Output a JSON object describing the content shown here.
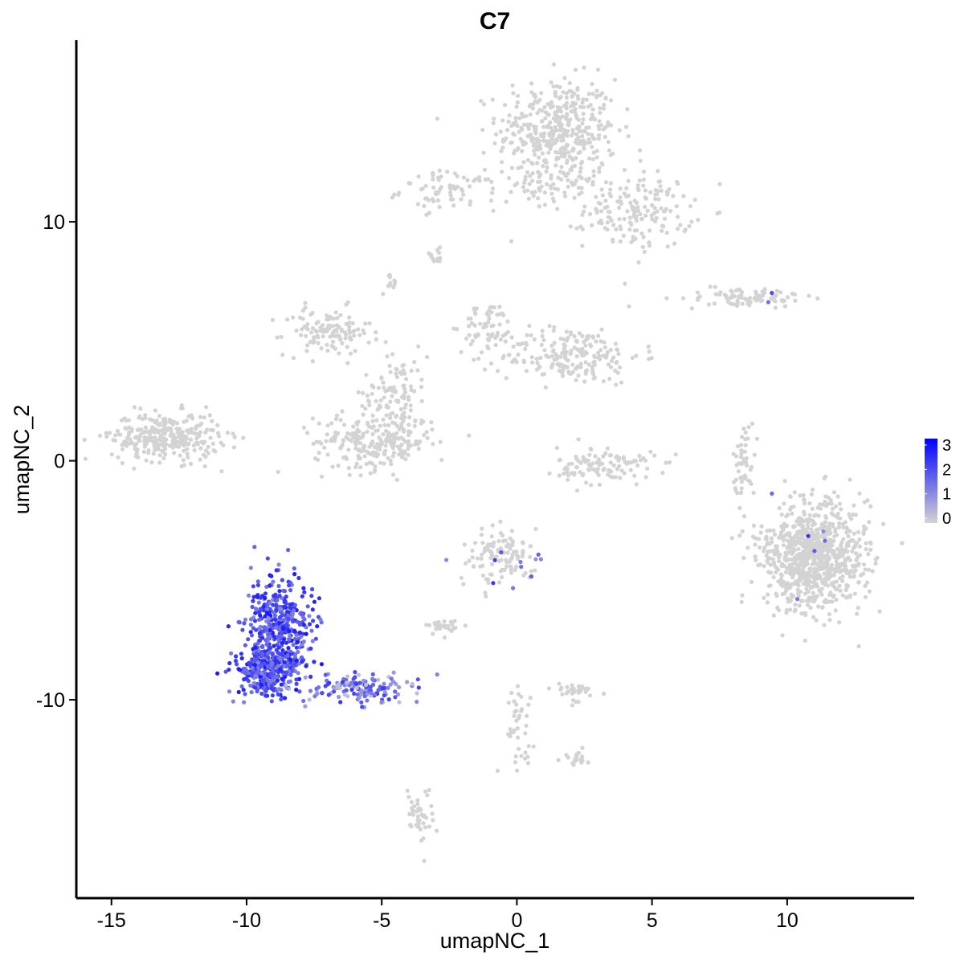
{
  "chart_data": {
    "type": "scatter",
    "title": "C7",
    "xlabel": "umapNC_1",
    "ylabel": "umapNC_2",
    "xlim": [
      -16.3,
      14.7
    ],
    "ylim": [
      -18.3,
      17.6
    ],
    "x_ticks": [
      -15,
      -10,
      -5,
      0,
      5,
      10
    ],
    "x_tick_labels": [
      "-15",
      "-10",
      "-5",
      "0",
      "5",
      "10"
    ],
    "y_ticks": [
      -10,
      0,
      10
    ],
    "y_tick_labels": [
      "-10",
      "0",
      "10"
    ],
    "grid": false,
    "legend": {
      "placement": "right",
      "type": "colorbar",
      "min": 0,
      "max": 3,
      "labels": [
        "3",
        "2",
        "1",
        "0"
      ],
      "low_color": "#d3d3d3",
      "high_color": "#0000ff"
    },
    "point_color_low": "#d3d3d3",
    "point_color_high": "#0000ff",
    "clusters": [
      {
        "name": "top-large",
        "cx": 1.5,
        "cy": 13.8,
        "sx": 1.1,
        "sy": 1.1,
        "n": 420,
        "expr": 0
      },
      {
        "name": "top-left-arm",
        "cx": -2.5,
        "cy": 11.3,
        "sx": 0.9,
        "sy": 0.4,
        "n": 70,
        "expr": 0
      },
      {
        "name": "top-right-arm",
        "cx": 4.5,
        "cy": 10.5,
        "sx": 1.0,
        "sy": 0.8,
        "n": 170,
        "expr": 0
      },
      {
        "name": "top-bridge",
        "cx": 1.0,
        "cy": 11.3,
        "sx": 1.0,
        "sy": 0.5,
        "n": 60,
        "expr": 0
      },
      {
        "name": "small-top-bead",
        "cx": -3.0,
        "cy": 8.6,
        "sx": 0.2,
        "sy": 0.15,
        "n": 12,
        "expr": 0
      },
      {
        "name": "small-bead-2",
        "cx": -4.6,
        "cy": 7.4,
        "sx": 0.2,
        "sy": 0.2,
        "n": 12,
        "expr": 0
      },
      {
        "name": "mid-left-lobe",
        "cx": -7.0,
        "cy": 5.4,
        "sx": 0.8,
        "sy": 0.5,
        "n": 120,
        "expr": 0
      },
      {
        "name": "mid-right-lobe",
        "cx": 2.0,
        "cy": 4.4,
        "sx": 1.3,
        "sy": 0.6,
        "n": 200,
        "expr": 0
      },
      {
        "name": "mid-upper-arm",
        "cx": -1.0,
        "cy": 5.6,
        "sx": 0.5,
        "sy": 0.5,
        "n": 60,
        "expr": 0
      },
      {
        "name": "mid-center-stem",
        "cx": -4.5,
        "cy": 2.8,
        "sx": 0.6,
        "sy": 1.0,
        "n": 110,
        "expr": 0
      },
      {
        "name": "mid-bottom-lobe",
        "cx": -5.3,
        "cy": 0.8,
        "sx": 1.1,
        "sy": 0.6,
        "n": 230,
        "expr": 0
      },
      {
        "name": "far-left",
        "cx": -13.0,
        "cy": 1.0,
        "sx": 1.0,
        "sy": 0.5,
        "n": 300,
        "expr": 0
      },
      {
        "name": "right-thin",
        "cx": 8.5,
        "cy": 6.8,
        "sx": 1.0,
        "sy": 0.2,
        "n": 90,
        "expr": 0.01
      },
      {
        "name": "center-small",
        "cx": 3.3,
        "cy": -0.2,
        "sx": 0.9,
        "sy": 0.4,
        "n": 110,
        "expr": 0
      },
      {
        "name": "right-sliver",
        "cx": 8.4,
        "cy": 0.0,
        "sx": 0.2,
        "sy": 0.8,
        "n": 50,
        "expr": 0
      },
      {
        "name": "far-right-large",
        "cx": 11.0,
        "cy": -4.0,
        "sx": 1.0,
        "sy": 1.1,
        "n": 900,
        "expr": 0.008
      },
      {
        "name": "center-mid-low",
        "cx": -0.5,
        "cy": -4.0,
        "sx": 0.6,
        "sy": 0.5,
        "n": 120,
        "expr": 0.05
      },
      {
        "name": "center-low-small",
        "cx": -2.6,
        "cy": -6.9,
        "sx": 0.3,
        "sy": 0.15,
        "n": 30,
        "expr": 0
      },
      {
        "name": "center-low-2",
        "cx": 2.2,
        "cy": -9.6,
        "sx": 0.4,
        "sy": 0.2,
        "n": 35,
        "expr": 0.02
      },
      {
        "name": "center-low-3",
        "cx": 0.0,
        "cy": -11.0,
        "sx": 0.3,
        "sy": 0.8,
        "n": 40,
        "expr": 0
      },
      {
        "name": "center-low-4",
        "cx": 2.1,
        "cy": -12.4,
        "sx": 0.3,
        "sy": 0.2,
        "n": 20,
        "expr": 0
      },
      {
        "name": "bottom-small",
        "cx": -3.6,
        "cy": -14.8,
        "sx": 0.25,
        "sy": 0.6,
        "n": 45,
        "expr": 0
      },
      {
        "name": "high-expr-head",
        "cx": -8.8,
        "cy": -7.0,
        "sx": 0.6,
        "sy": 1.0,
        "n": 420,
        "expr": 1
      },
      {
        "name": "high-expr-base",
        "cx": -9.3,
        "cy": -8.8,
        "sx": 0.6,
        "sy": 0.5,
        "n": 260,
        "expr": 1
      },
      {
        "name": "high-expr-tail",
        "cx": -5.8,
        "cy": -9.5,
        "sx": 1.1,
        "sy": 0.3,
        "n": 150,
        "expr": 0.8
      }
    ]
  }
}
